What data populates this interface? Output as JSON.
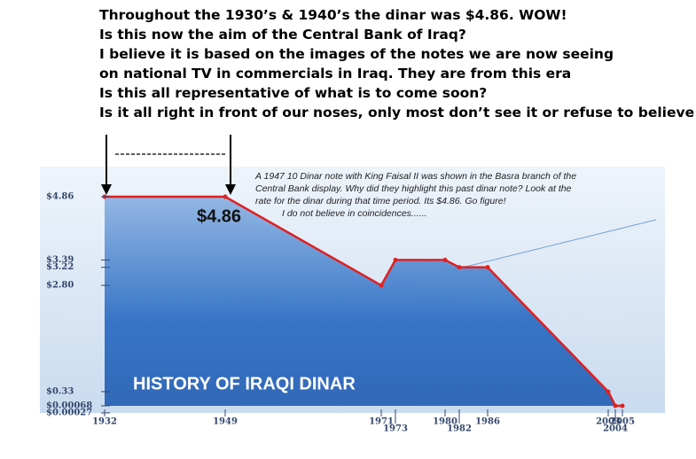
{
  "header": {
    "lines": [
      "Throughout the 1930’s & 1940’s the dinar was $4.86. WOW!",
      "Is this now the aim of the Central Bank of Iraq?",
      "I believe it is based on the images of the notes we are now seeing",
      "on  national TV in commercials in Iraq. They are from this era",
      "Is this all representative of what is to come soon?",
      "Is it all right in front of our noses, only most don’t see it or refuse to believe it?"
    ]
  },
  "chart_data": {
    "type": "area",
    "title": "HISTORY OF IRAQI DINAR",
    "highlight_label": "$4.86",
    "annotation": [
      "A 1947 10 Dinar note with King Faisal II was shown in the Basra branch of the",
      "Central Bank display. Why did they highlight this past dinar note? Look at the",
      "rate for the dinar during that time period. Its $4.86. Go figure!",
      "I do not believe in coincidences......"
    ],
    "x": [
      1932,
      1949,
      1971,
      1973,
      1980,
      1982,
      1986,
      2003,
      2004,
      2005
    ],
    "values": [
      4.86,
      4.86,
      2.8,
      3.39,
      3.39,
      3.22,
      3.22,
      0.33,
      0.00027,
      0.00068
    ],
    "color": "#e02020",
    "xlim": [
      1932,
      2005
    ],
    "xticks": [
      1932,
      1949,
      1971,
      1973,
      1980,
      1982,
      1986,
      2003,
      2004,
      2005
    ],
    "ylim": [
      0,
      4.86
    ],
    "yticks": [
      {
        "value": 4.86,
        "label": "$4.86"
      },
      {
        "value": 3.39,
        "label": "$3.39"
      },
      {
        "value": 3.22,
        "label": "$3.22"
      },
      {
        "value": 2.8,
        "label": "$2.80"
      },
      {
        "value": 0.33,
        "label": "$0.33"
      },
      {
        "value": 0.00068,
        "label": "$0.00068"
      },
      {
        "value": 0.00027,
        "label": "$0.00027"
      }
    ]
  }
}
